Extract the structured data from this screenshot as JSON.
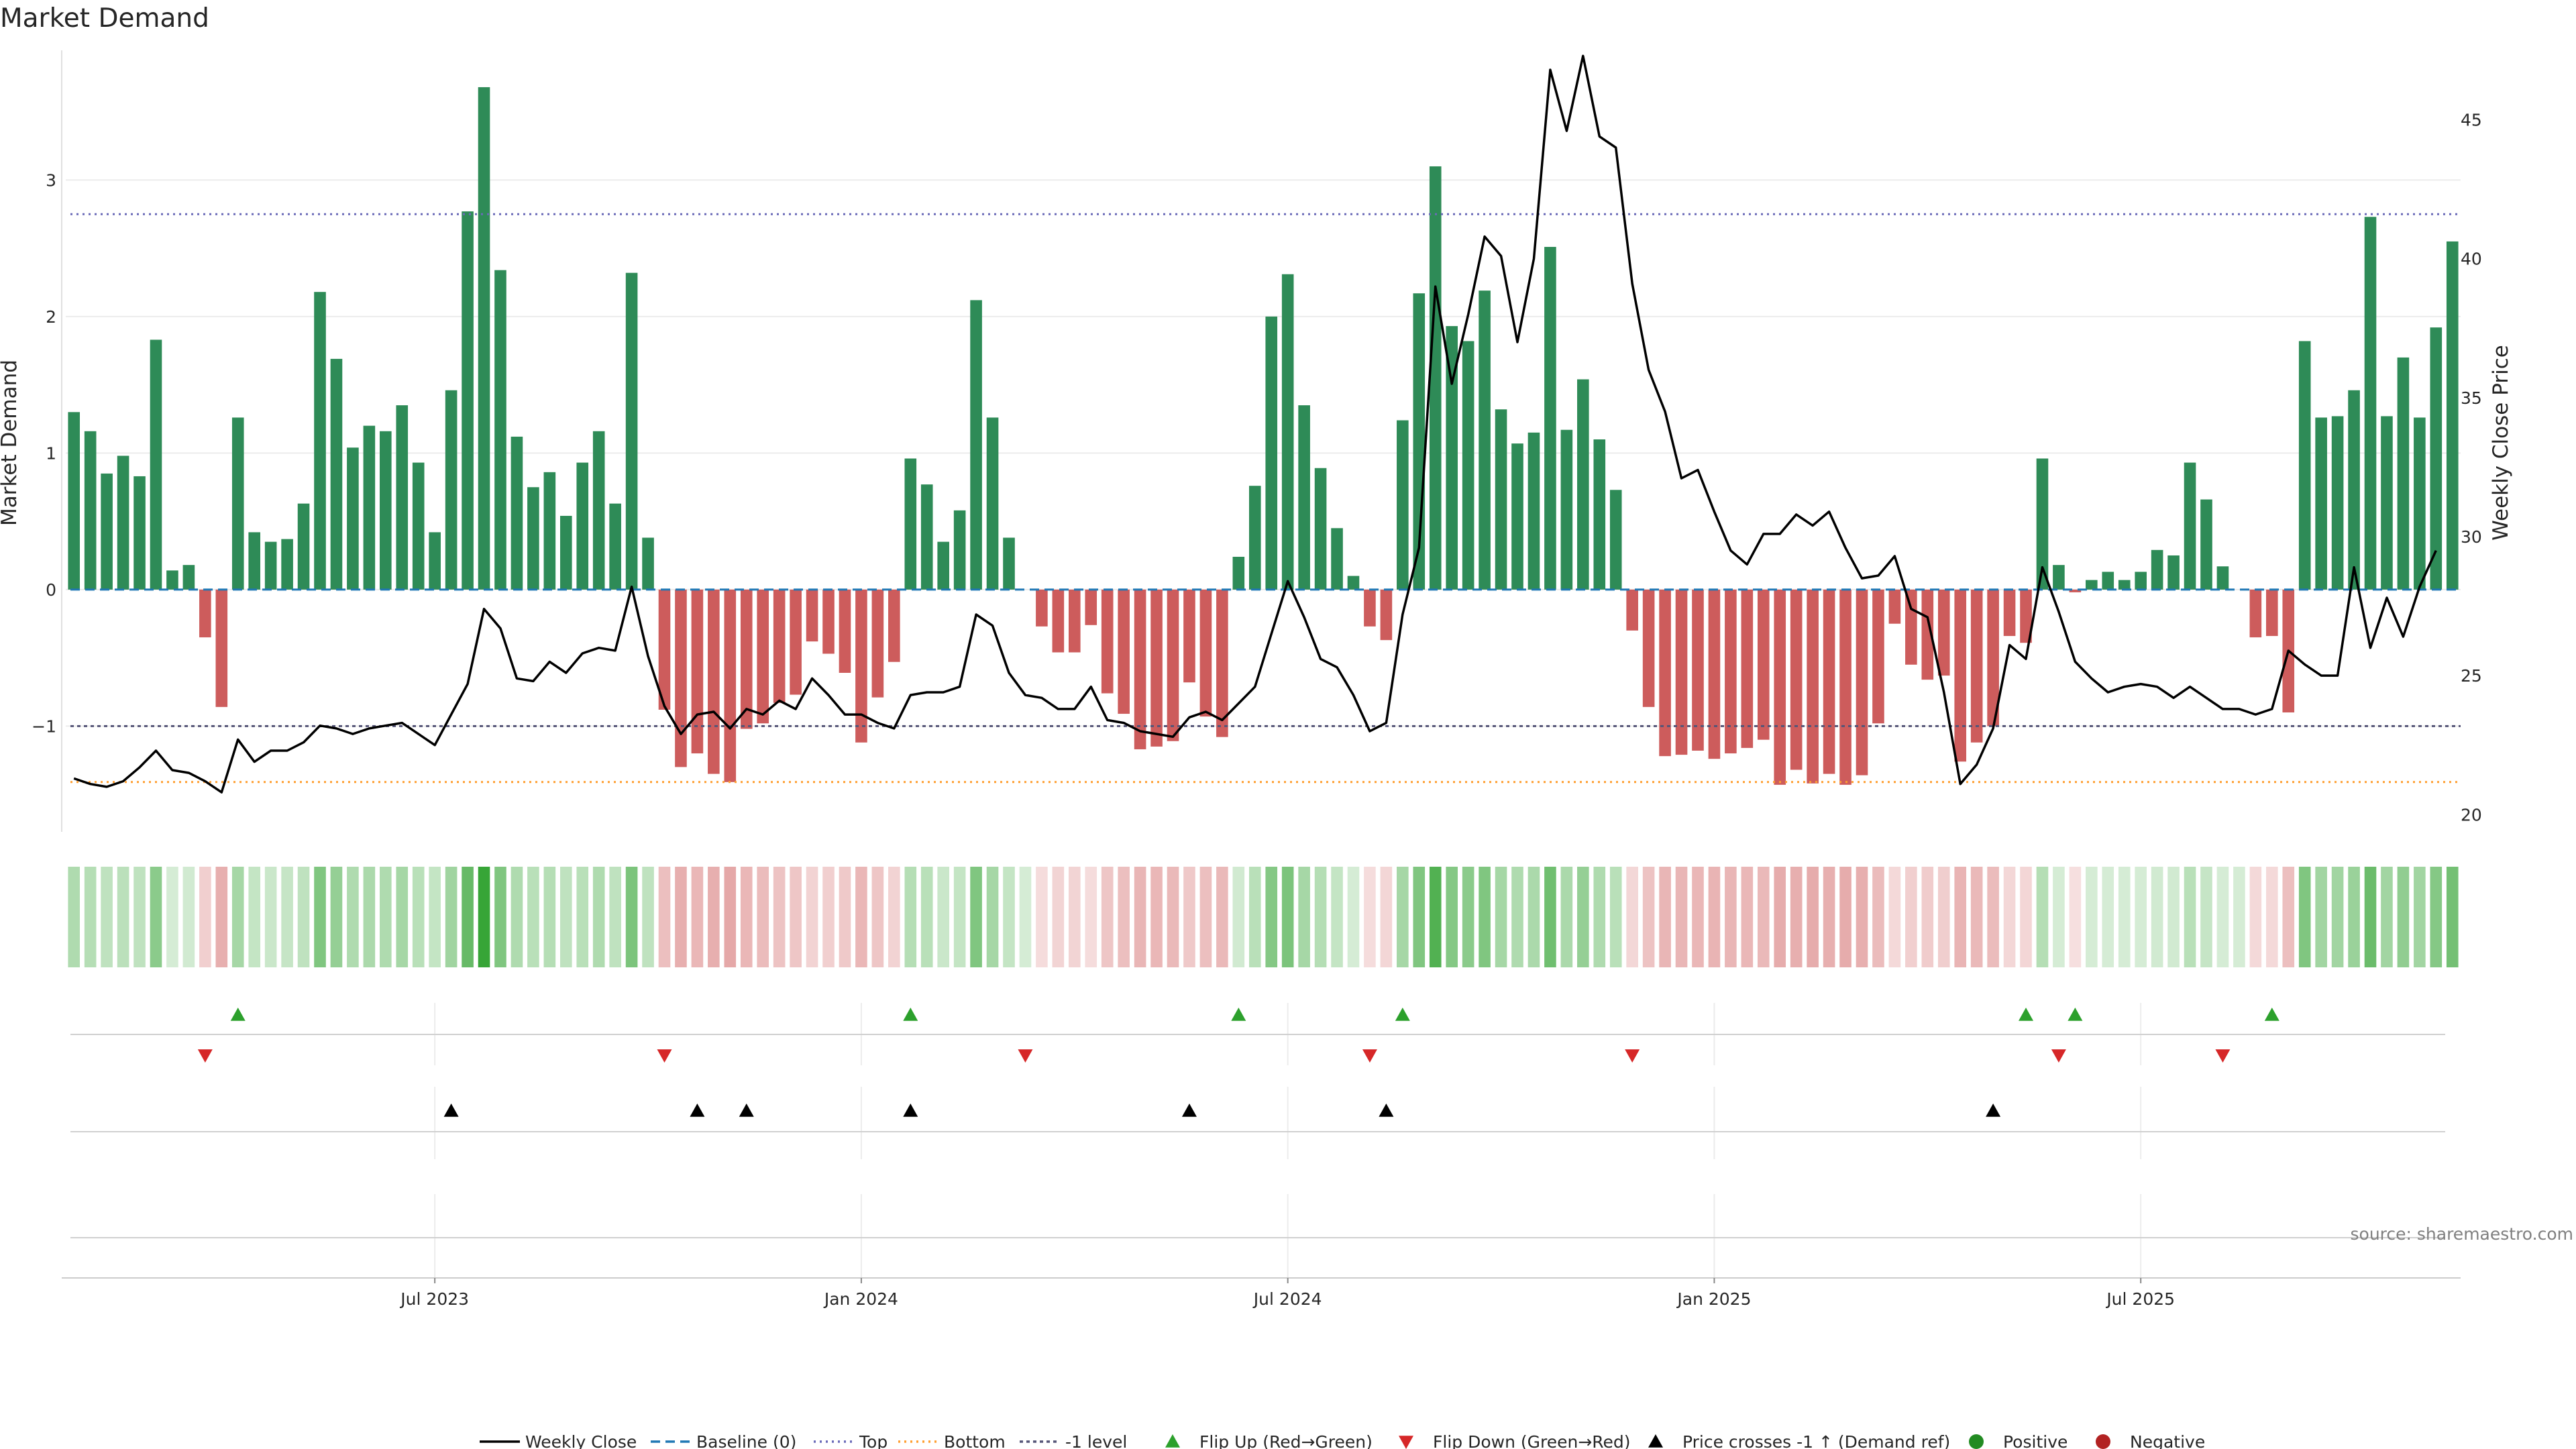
{
  "chart_data": {
    "type": "bar",
    "title": "Market Demand",
    "ylabel_left": "Market Demand",
    "ylabel_right": "Weekly Close Price",
    "ylim_left": [
      -1.75,
      3.95
    ],
    "ylim_right": [
      19.5,
      47.5
    ],
    "yticks_left": [
      {
        "v": -1,
        "label": "−1"
      },
      {
        "v": 0,
        "label": "0"
      },
      {
        "v": 1,
        "label": "1"
      },
      {
        "v": 2,
        "label": "2"
      },
      {
        "v": 3,
        "label": "3"
      }
    ],
    "yticks_right": [
      20,
      25,
      30,
      35,
      40,
      45
    ],
    "xticks": [
      {
        "i": 22,
        "label": "Jul 2023"
      },
      {
        "i": 48,
        "label": "Jan 2024"
      },
      {
        "i": 74,
        "label": "Jul 2024"
      },
      {
        "i": 100,
        "label": "Jan 2025"
      },
      {
        "i": 126,
        "label": "Jul 2025"
      }
    ],
    "reference_lines": {
      "top": 2.75,
      "bottom": -1.41,
      "minus_one": -1,
      "baseline": 0
    },
    "demand": [
      1.3,
      1.16,
      0.85,
      0.98,
      0.83,
      1.83,
      0.14,
      0.18,
      -0.35,
      -0.86,
      1.26,
      0.42,
      0.35,
      0.37,
      0.63,
      2.18,
      1.69,
      1.04,
      1.2,
      1.16,
      1.35,
      0.93,
      0.42,
      1.46,
      2.77,
      3.68,
      2.34,
      1.12,
      0.75,
      0.86,
      0.54,
      0.93,
      1.16,
      0.63,
      2.32,
      0.38,
      -0.88,
      -1.3,
      -1.2,
      -1.35,
      -1.41,
      -1.02,
      -0.98,
      -0.83,
      -0.77,
      -0.38,
      -0.47,
      -0.61,
      -1.12,
      -0.79,
      -0.53,
      0.96,
      0.77,
      0.35,
      0.58,
      2.12,
      1.26,
      0.38,
      0.0,
      -0.27,
      -0.46,
      -0.46,
      -0.26,
      -0.76,
      -0.91,
      -1.17,
      -1.15,
      -1.11,
      -0.68,
      -0.93,
      -1.08,
      0.24,
      0.76,
      2.0,
      2.31,
      1.35,
      0.89,
      0.45,
      0.1,
      -0.27,
      -0.37,
      1.24,
      2.17,
      3.1,
      1.93,
      1.82,
      2.19,
      1.32,
      1.07,
      1.15,
      2.51,
      1.17,
      1.54,
      1.1,
      0.73,
      -0.3,
      -0.86,
      -1.22,
      -1.21,
      -1.18,
      -1.24,
      -1.2,
      -1.16,
      -1.1,
      -1.43,
      -1.32,
      -1.42,
      -1.35,
      -1.43,
      -1.36,
      -0.98,
      -0.25,
      -0.55,
      -0.66,
      -0.63,
      -1.26,
      -1.12,
      -1.0,
      -0.34,
      -0.39,
      0.96,
      0.18,
      -0.02,
      0.07,
      0.13,
      0.07,
      0.13,
      0.29,
      0.25,
      0.93,
      0.66,
      0.17,
      0.0,
      -0.35,
      -0.34,
      -0.9,
      1.82,
      1.26,
      1.27,
      1.46,
      2.73,
      1.27,
      1.7,
      1.26,
      1.92,
      2.55
    ],
    "weekly_close": [
      21.3,
      21.1,
      21.0,
      21.2,
      21.7,
      22.3,
      21.6,
      21.5,
      21.2,
      20.8,
      22.7,
      21.9,
      22.3,
      22.3,
      22.6,
      23.2,
      23.1,
      22.9,
      23.1,
      23.2,
      23.3,
      22.9,
      22.5,
      23.6,
      24.7,
      27.4,
      26.7,
      24.9,
      24.8,
      25.5,
      25.1,
      25.8,
      26.0,
      25.9,
      28.2,
      25.7,
      23.9,
      22.9,
      23.6,
      23.7,
      23.1,
      23.8,
      23.6,
      24.1,
      23.8,
      24.9,
      24.3,
      23.6,
      23.6,
      23.3,
      23.1,
      24.3,
      24.4,
      24.4,
      24.6,
      27.2,
      26.8,
      25.1,
      24.3,
      24.2,
      23.8,
      23.8,
      24.6,
      23.4,
      23.3,
      23.0,
      22.9,
      22.8,
      23.5,
      23.7,
      23.4,
      24.0,
      24.6,
      26.5,
      28.4,
      27.1,
      25.6,
      25.3,
      24.3,
      23.0,
      23.3,
      27.2,
      29.6,
      39.0,
      35.5,
      38.0,
      40.8,
      40.1,
      37.0,
      40.0,
      46.8,
      44.6,
      47.3,
      44.4,
      44.0,
      39.1,
      36.0,
      34.5,
      32.1,
      32.4,
      30.9,
      29.5,
      29.0,
      30.1,
      30.1,
      30.8,
      30.4,
      30.9,
      29.6,
      28.5,
      28.6,
      29.3,
      27.4,
      27.1,
      24.4,
      21.1,
      21.8,
      23.1,
      26.1,
      25.6,
      28.9,
      27.3,
      25.5,
      24.9,
      24.4,
      24.6,
      24.7,
      24.6,
      24.2,
      24.6,
      24.2,
      23.8,
      23.8,
      23.6,
      23.8,
      25.9,
      25.4,
      25.0,
      25.0,
      28.9,
      26.0,
      27.8,
      26.4,
      28.2,
      29.5
    ],
    "colorband_alpha": [
      0.38,
      0.35,
      0.3,
      0.32,
      0.3,
      0.55,
      0.2,
      0.22,
      0.3,
      0.5,
      0.42,
      0.28,
      0.25,
      0.27,
      0.3,
      0.6,
      0.5,
      0.38,
      0.4,
      0.38,
      0.42,
      0.33,
      0.28,
      0.45,
      0.72,
      0.95,
      0.6,
      0.38,
      0.33,
      0.35,
      0.3,
      0.33,
      0.38,
      0.3,
      0.62,
      0.3,
      0.4,
      0.5,
      0.45,
      0.5,
      0.55,
      0.45,
      0.42,
      0.38,
      0.36,
      0.28,
      0.3,
      0.34,
      0.45,
      0.36,
      0.28,
      0.35,
      0.33,
      0.25,
      0.28,
      0.6,
      0.42,
      0.28,
      0.2,
      0.22,
      0.27,
      0.27,
      0.22,
      0.36,
      0.4,
      0.46,
      0.45,
      0.44,
      0.34,
      0.4,
      0.44,
      0.22,
      0.33,
      0.58,
      0.62,
      0.42,
      0.35,
      0.28,
      0.2,
      0.22,
      0.26,
      0.42,
      0.6,
      0.82,
      0.58,
      0.55,
      0.6,
      0.42,
      0.38,
      0.4,
      0.68,
      0.4,
      0.5,
      0.38,
      0.33,
      0.25,
      0.38,
      0.46,
      0.46,
      0.45,
      0.47,
      0.46,
      0.45,
      0.44,
      0.52,
      0.5,
      0.52,
      0.5,
      0.52,
      0.5,
      0.42,
      0.24,
      0.3,
      0.32,
      0.31,
      0.47,
      0.44,
      0.42,
      0.25,
      0.26,
      0.35,
      0.2,
      0.2,
      0.2,
      0.2,
      0.2,
      0.2,
      0.22,
      0.22,
      0.33,
      0.27,
      0.2,
      0.2,
      0.24,
      0.24,
      0.4,
      0.6,
      0.44,
      0.44,
      0.48,
      0.7,
      0.44,
      0.52,
      0.44,
      0.58,
      0.66
    ],
    "flip_up_idx": [
      10,
      51,
      71,
      81,
      119,
      122,
      134
    ],
    "flip_down_idx": [
      8,
      36,
      58,
      79,
      95,
      121,
      131
    ],
    "price_cross_idx": [
      23,
      38,
      41,
      51,
      68,
      80,
      117
    ],
    "legend": [
      "Weekly Close",
      "Baseline (0)",
      "Top",
      "Bottom",
      "-1 level",
      "Flip Up (Red→Green)",
      "Flip Down (Green→Red)",
      "Price crosses -1 ↑ (Demand ref)",
      "Positive",
      "Negative"
    ],
    "source": "source: sharemaestro.com",
    "colors": {
      "positive": "#2e8b57",
      "negative": "#cd5c5c",
      "band_positive": "#2ca02c",
      "band_negative": "#d06060",
      "flip_up": "#2ca02c",
      "flip_down": "#d62728",
      "top_line": "#6a6ab8",
      "bottom_line": "#ff9f30",
      "minus_one_line": "#555577",
      "baseline": "#1f77b4",
      "price_line": "#000000",
      "legend_positive": "#228b22",
      "legend_negative": "#b22222"
    }
  }
}
